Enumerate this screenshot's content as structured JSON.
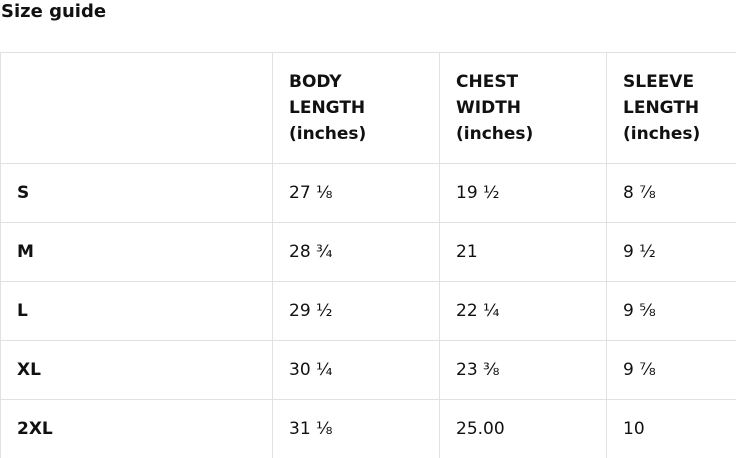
{
  "title": "Size guide",
  "table": {
    "columns": [
      "",
      "BODY LENGTH (inches)",
      "CHEST WIDTH (inches)",
      "SLEEVE LENGTH (inches)"
    ],
    "rows": [
      {
        "size": "S",
        "body_length": "27 ⅛",
        "chest_width": "19 ½",
        "sleeve_length": "8 ⅞"
      },
      {
        "size": "M",
        "body_length": "28 ¾",
        "chest_width": "21",
        "sleeve_length": "9 ½"
      },
      {
        "size": "L",
        "body_length": "29 ½",
        "chest_width": "22 ¼",
        "sleeve_length": "9 ⅝"
      },
      {
        "size": "XL",
        "body_length": "30 ¼",
        "chest_width": "23 ⅜",
        "sleeve_length": "9 ⅞"
      },
      {
        "size": "2XL",
        "body_length": "31 ⅛",
        "chest_width": "25.00",
        "sleeve_length": "10"
      }
    ],
    "colors": {
      "background": "#ffffff",
      "text": "#111111",
      "border": "#e1e1e1"
    }
  }
}
